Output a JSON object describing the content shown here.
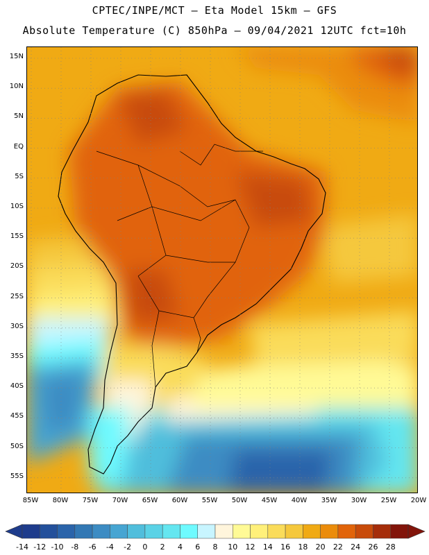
{
  "header": {
    "line1": "CPTEC/INPE/MCT –  Eta Model 15km – GFS",
    "line2": "Absolute Temperature (C) 850hPa – 09/04/2021 12UTC fct=10h"
  },
  "map": {
    "lat_labels": [
      "15N",
      "10N",
      "5N",
      "EQ",
      "5S",
      "10S",
      "15S",
      "20S",
      "25S",
      "30S",
      "35S",
      "40S",
      "45S",
      "50S",
      "55S"
    ],
    "lon_labels": [
      "85W",
      "80W",
      "75W",
      "70W",
      "65W",
      "60W",
      "55W",
      "50W",
      "45W",
      "40W",
      "35W",
      "30W",
      "25W",
      "20W"
    ],
    "lat_range": [
      -57.5,
      17.5
    ],
    "lon_range": [
      -85.5,
      -20
    ]
  },
  "legend": {
    "labels": [
      "-14",
      "-12",
      "-10",
      "-8",
      "-6",
      "-4",
      "-2",
      "0",
      "2",
      "4",
      "6",
      "8",
      "10",
      "12",
      "14",
      "16",
      "18",
      "20",
      "22",
      "24",
      "26",
      "28"
    ],
    "colors": [
      "#1e3c8c",
      "#23509b",
      "#2a64aa",
      "#3278b4",
      "#3c8cc3",
      "#46a5d2",
      "#50bedc",
      "#5ad2e6",
      "#64e6f0",
      "#6efaff",
      "#c8f5ff",
      "#fff5dc",
      "#fffa96",
      "#fff07a",
      "#fadc5a",
      "#f5c83c",
      "#f0aa14",
      "#eb8c0a",
      "#e1640a",
      "#c84b0a",
      "#a52d0a",
      "#82140a"
    ]
  }
}
